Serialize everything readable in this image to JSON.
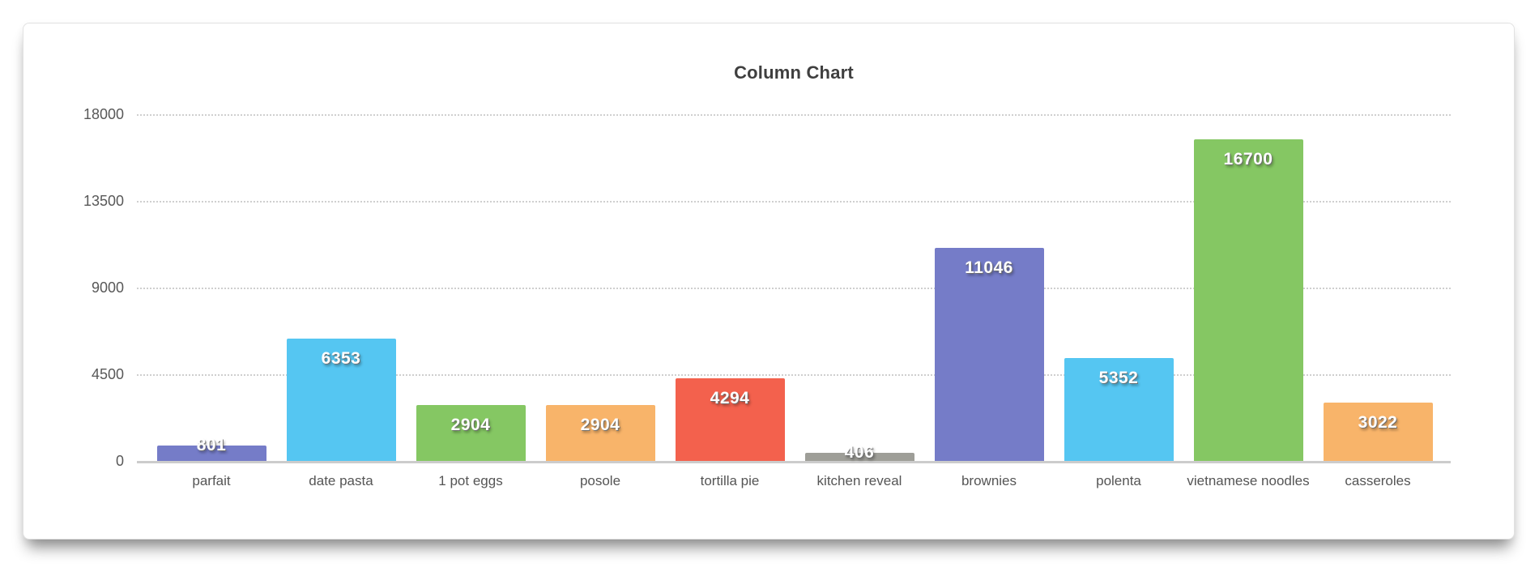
{
  "chart_data": {
    "type": "bar",
    "title": "Column Chart",
    "categories": [
      "parfait",
      "date pasta",
      "1 pot eggs",
      "posole",
      "tortilla pie",
      "kitchen reveal",
      "brownies",
      "polenta",
      "vietnamese noodles",
      "casseroles"
    ],
    "values": [
      801,
      6353,
      2904,
      2904,
      4294,
      406,
      11046,
      5352,
      16700,
      3022
    ],
    "bar_colors": [
      "#757CC8",
      "#55C6F2",
      "#85C763",
      "#F8B46A",
      "#F3614D",
      "#9E9E98",
      "#757CC8",
      "#55C6F2",
      "#85C763",
      "#F8B46A"
    ],
    "value_labels": [
      "801",
      "6353",
      "2904",
      "2904",
      "4294",
      "406",
      "11046",
      "5352",
      "16700",
      "3022"
    ],
    "y_ticks": [
      0,
      4500,
      9000,
      13500,
      18000
    ],
    "y_tick_labels": [
      "0",
      "4500",
      "9000",
      "13500",
      "18000"
    ],
    "ylim": [
      0,
      18000
    ],
    "xlabel": "",
    "ylabel": "",
    "legend": "none",
    "grid": "horizontal-dotted",
    "axis_color": "#cccccc",
    "gridline_color": "#cfcfcf",
    "tick_label_color": "#585858",
    "category_label_color": "#555555",
    "title_color": "#3f3f3f",
    "value_label_color": "#ffffff"
  }
}
